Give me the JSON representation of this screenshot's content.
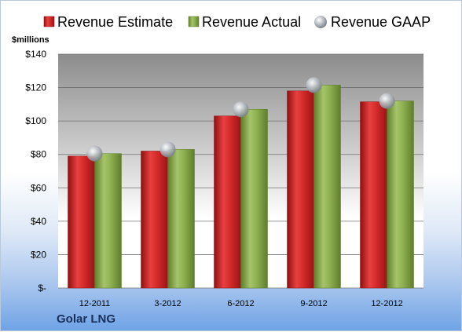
{
  "chart_data": {
    "type": "bar",
    "categories": [
      "12-2011",
      "3-2012",
      "6-2012",
      "9-2012",
      "12-2012"
    ],
    "series": [
      {
        "name": "Revenue Estimate",
        "values": [
          79,
          82,
          103,
          118,
          111.5
        ],
        "color": "#d42a2a"
      },
      {
        "name": "Revenue Actual",
        "values": [
          80.5,
          83,
          107,
          121.5,
          112
        ],
        "color": "#8fb050"
      },
      {
        "name": "Revenue GAAP",
        "values": [
          80.5,
          83,
          107,
          121.5,
          112
        ],
        "color": "#b8c0c8",
        "marker": "sphere"
      }
    ],
    "ylabel": "$millions",
    "ylim": [
      0,
      140
    ],
    "yticks": [
      0,
      20,
      40,
      60,
      80,
      100,
      120,
      140
    ],
    "ytick_labels": [
      "$-",
      "$20",
      "$40",
      "$60",
      "$80",
      "$100",
      "$120",
      "$140"
    ],
    "grid": true,
    "legend": "top",
    "company": "Golar LNG"
  }
}
